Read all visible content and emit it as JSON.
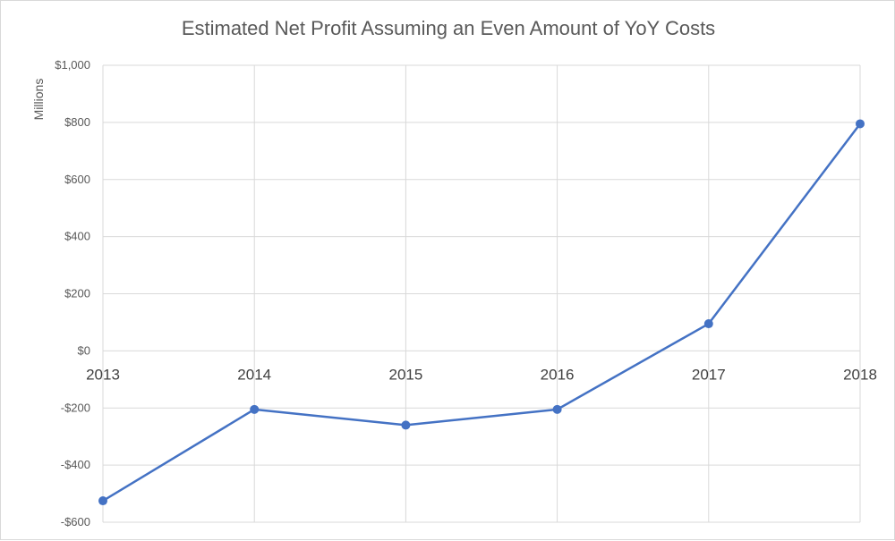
{
  "chart_data": {
    "type": "line",
    "title": "Estimated Net Profit Assuming an Even Amount of YoY Costs",
    "xlabel": "",
    "ylabel": "Millions",
    "categories": [
      "2013",
      "2014",
      "2015",
      "2016",
      "2017",
      "2018"
    ],
    "series": [
      {
        "values": [
          -525,
          -205,
          -260,
          -205,
          95,
          795
        ],
        "color": "#4472c4"
      }
    ],
    "ylim": [
      -600,
      1000
    ],
    "yticks": [
      -600,
      -400,
      -200,
      0,
      200,
      400,
      600,
      800,
      1000
    ],
    "ytick_labels": [
      "-$600",
      "-$400",
      "-$200",
      "$0",
      "$200",
      "$400",
      "$600",
      "$800",
      "$1,000"
    ],
    "grid": true,
    "legend": "none",
    "x_labels_position": "at-zero-line"
  }
}
